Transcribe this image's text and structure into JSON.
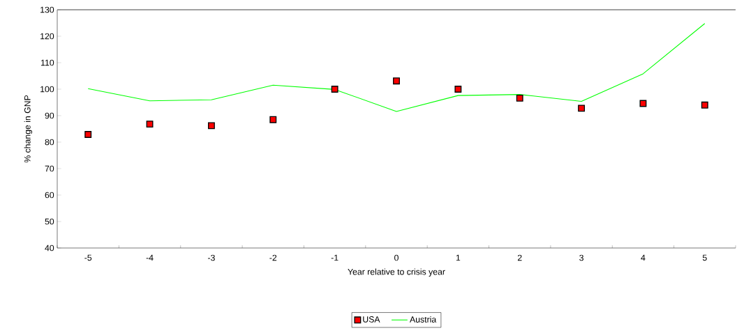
{
  "chart_data": {
    "type": "line",
    "xlabel": "Year relative to crisis year",
    "ylabel": "% change in GNP",
    "categories": [
      "-5",
      "-4",
      "-3",
      "-2",
      "-1",
      "0",
      "1",
      "2",
      "3",
      "4",
      "5"
    ],
    "series": [
      {
        "name": "USA",
        "type": "scatter",
        "marker": "square",
        "color": "#ff0000",
        "values": [
          82.9,
          86.8,
          86.2,
          88.5,
          100,
          103.1,
          100,
          96.6,
          92.8,
          94.6,
          94
        ]
      },
      {
        "name": "Austria",
        "marker": "none",
        "color": "#00ff00",
        "values": [
          100.2,
          95.6,
          96,
          101.5,
          99.9,
          91.6,
          97.6,
          98,
          95.4,
          105.8,
          124.8
        ]
      }
    ],
    "ylim": [
      40,
      130
    ],
    "yticks": [
      40,
      50,
      60,
      70,
      80,
      90,
      100,
      110,
      120,
      130
    ],
    "grid": false,
    "legend": "bottom"
  }
}
